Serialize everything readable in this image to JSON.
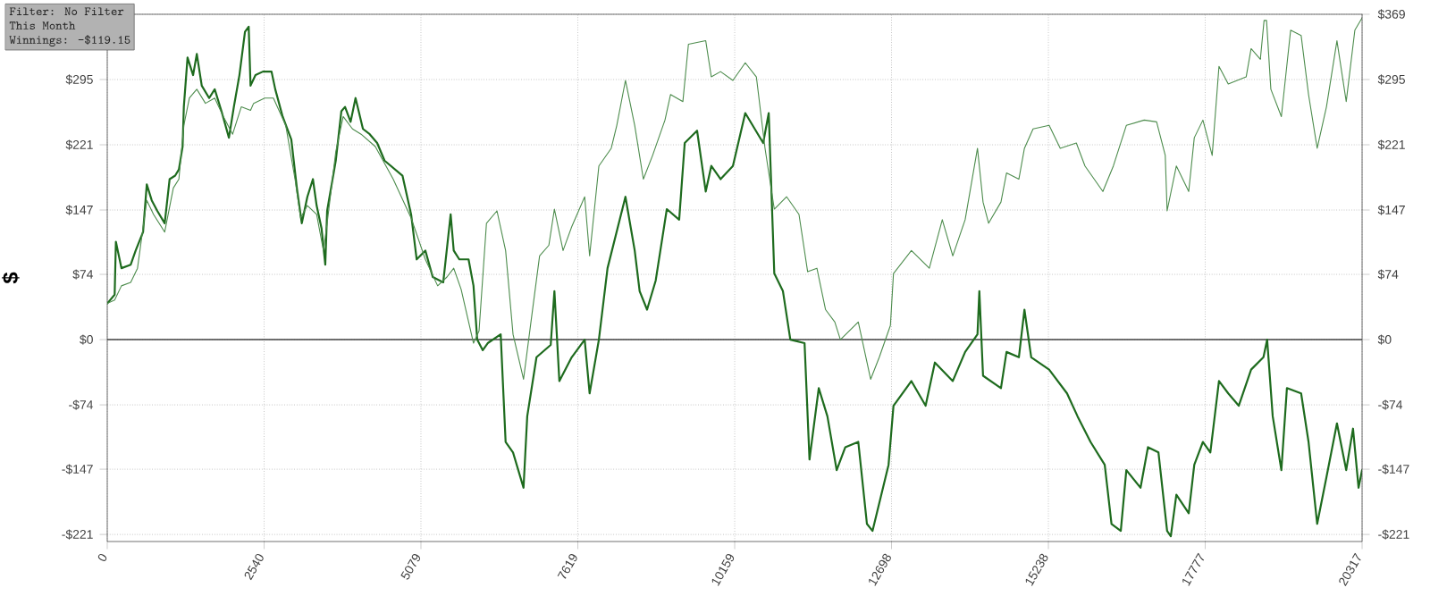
{
  "chart_data": {
    "type": "line",
    "ylabel": "$",
    "annotations": [
      "Filter: No Filter",
      "This Month",
      "Winnings: -$119.15"
    ],
    "xlim": [
      0,
      20317
    ],
    "xticks": [
      0,
      2540,
      5079,
      7619,
      10159,
      12698,
      15238,
      17777,
      20317
    ],
    "ylim": [
      -229,
      369
    ],
    "yticks": [
      {
        "value": -221,
        "label": "-$221"
      },
      {
        "value": -147,
        "label": "-$147"
      },
      {
        "value": -74,
        "label": "-$74"
      },
      {
        "value": 0,
        "label": "$0"
      },
      {
        "value": 74,
        "label": "$74"
      },
      {
        "value": 147,
        "label": "$147"
      },
      {
        "value": 221,
        "label": "$221"
      },
      {
        "value": 295,
        "label": "$295"
      },
      {
        "value": 369,
        "label": null
      }
    ],
    "y2lim": [
      -229,
      369
    ],
    "y2ticks": [
      {
        "value": -221,
        "label": "-$221"
      },
      {
        "value": -147,
        "label": "-$147"
      },
      {
        "value": -74,
        "label": "-$74"
      },
      {
        "value": 0,
        "label": "$0"
      },
      {
        "value": 74,
        "label": "$74"
      },
      {
        "value": 147,
        "label": "$147"
      },
      {
        "value": 221,
        "label": "$221"
      },
      {
        "value": 295,
        "label": "$295"
      },
      {
        "value": 369,
        "label": "$369"
      }
    ],
    "grid": true,
    "marker": "none",
    "line_style": "solid",
    "ref_lines": [
      {
        "axis": "y",
        "value": 0,
        "color": "#404040"
      }
    ],
    "series": [
      {
        "color": "#1e6b1e",
        "x": [
          0,
          120,
          140,
          230,
          380,
          460,
          580,
          640,
          720,
          810,
          930,
          1010,
          1100,
          1160,
          1220,
          1240,
          1300,
          1390,
          1450,
          1530,
          1650,
          1740,
          1850,
          1970,
          2050,
          2140,
          2230,
          2290,
          2320,
          2400,
          2520,
          2660,
          2720,
          2840,
          2980,
          3070,
          3150,
          3240,
          3330,
          3390,
          3470,
          3530,
          3560,
          3700,
          3790,
          3850,
          3940,
          4020,
          4140,
          4250,
          4370,
          4490,
          4780,
          4920,
          5010,
          5150,
          5270,
          5440,
          5560,
          5610,
          5700,
          5850,
          5930,
          5990,
          6080,
          6160,
          6370,
          6450,
          6570,
          6740,
          6800,
          6950,
          7180,
          7240,
          7320,
          7520,
          7730,
          7810,
          7960,
          8100,
          8390,
          8540,
          8620,
          8740,
          8880,
          9060,
          9260,
          9350,
          9550,
          9690,
          9780,
          9930,
          10130,
          10330,
          10620,
          10710,
          10800,
          10940,
          11060,
          11290,
          11370,
          11520,
          11660,
          11810,
          11950,
          12160,
          12300,
          12390,
          12650,
          12730,
          13020,
          13250,
          13400,
          13690,
          13890,
          14090,
          14120,
          14180,
          14470,
          14560,
          14760,
          14850,
          14960,
          15250,
          15540,
          15710,
          15920,
          16150,
          16260,
          16410,
          16500,
          16730,
          16850,
          17020,
          17160,
          17220,
          17310,
          17510,
          17600,
          17740,
          17860,
          18000,
          18150,
          18320,
          18520,
          18720,
          18780,
          18870,
          19010,
          19100,
          19330,
          19450,
          19590,
          19740,
          19910,
          20060,
          20170,
          20260,
          20317
        ],
        "values": [
          41,
          51,
          111,
          81,
          85,
          101,
          122,
          176,
          158,
          146,
          132,
          182,
          186,
          193,
          219,
          264,
          320,
          300,
          324,
          288,
          274,
          284,
          259,
          229,
          264,
          300,
          349,
          355,
          288,
          300,
          304,
          304,
          284,
          253,
          227,
          172,
          132,
          162,
          182,
          152,
          126,
          85,
          146,
          203,
          259,
          264,
          247,
          274,
          239,
          233,
          223,
          203,
          186,
          142,
          91,
          101,
          71,
          65,
          142,
          101,
          91,
          91,
          61,
          0,
          -12,
          -4,
          6,
          -116,
          -128,
          -168,
          -87,
          -20,
          -6,
          55,
          -47,
          -20,
          0,
          -61,
          0,
          81,
          162,
          101,
          55,
          34,
          67,
          148,
          136,
          223,
          237,
          168,
          197,
          182,
          197,
          257,
          223,
          257,
          75,
          55,
          0,
          -4,
          -136,
          -55,
          -87,
          -148,
          -122,
          -116,
          -209,
          -217,
          -142,
          -75,
          -47,
          -75,
          -26,
          -47,
          -14,
          6,
          55,
          -41,
          -55,
          -14,
          -20,
          34,
          -20,
          -34,
          -61,
          -87,
          -116,
          -142,
          -209,
          -217,
          -148,
          -168,
          -122,
          -128,
          -217,
          -223,
          -176,
          -197,
          -142,
          -116,
          -128,
          -47,
          -61,
          -75,
          -34,
          -20,
          0,
          -87,
          -148,
          -55,
          -61,
          -116,
          -209,
          -156,
          -95,
          -148,
          -101,
          -168,
          -148
        ]
      },
      {
        "color": "#4d8c4d",
        "x": [
          0,
          120,
          230,
          380,
          490,
          640,
          750,
          930,
          1070,
          1160,
          1240,
          1330,
          1450,
          1590,
          1740,
          1880,
          2030,
          2170,
          2320,
          2370,
          2550,
          2690,
          2780,
          2890,
          3040,
          3130,
          3240,
          3390,
          3500,
          3560,
          3700,
          3820,
          3970,
          4110,
          4340,
          4630,
          4920,
          5150,
          5350,
          5500,
          5610,
          5730,
          5930,
          6020,
          6140,
          6310,
          6450,
          6570,
          6740,
          6860,
          7000,
          7150,
          7240,
          7380,
          7520,
          7730,
          7810,
          7960,
          8160,
          8250,
          8390,
          8540,
          8680,
          8830,
          9030,
          9120,
          9320,
          9410,
          9690,
          9780,
          9930,
          10130,
          10330,
          10510,
          10650,
          10800,
          11000,
          11200,
          11340,
          11490,
          11630,
          11780,
          11870,
          12160,
          12360,
          12500,
          12680,
          12730,
          13020,
          13310,
          13520,
          13690,
          13890,
          14090,
          14180,
          14270,
          14470,
          14560,
          14760,
          14850,
          14990,
          15250,
          15430,
          15690,
          15830,
          16120,
          16290,
          16500,
          16790,
          16990,
          17130,
          17160,
          17310,
          17510,
          17600,
          17740,
          17890,
          18000,
          18150,
          18440,
          18520,
          18670,
          18730,
          18770,
          18840,
          19010,
          19160,
          19330,
          19450,
          19590,
          19740,
          19910,
          20060,
          20200,
          20317
        ],
        "values": [
          41,
          45,
          61,
          65,
          81,
          158,
          142,
          122,
          172,
          182,
          243,
          274,
          284,
          268,
          274,
          253,
          233,
          264,
          260,
          268,
          274,
          274,
          260,
          243,
          182,
          138,
          152,
          142,
          101,
          132,
          213,
          253,
          239,
          233,
          219,
          182,
          138,
          91,
          61,
          71,
          81,
          57,
          -4,
          10,
          132,
          146,
          101,
          6,
          -45,
          20,
          95,
          107,
          148,
          101,
          128,
          162,
          95,
          197,
          217,
          243,
          294,
          243,
          182,
          209,
          249,
          278,
          270,
          335,
          339,
          298,
          304,
          294,
          314,
          298,
          217,
          148,
          162,
          142,
          77,
          81,
          34,
          20,
          0,
          20,
          -45,
          -20,
          16,
          75,
          101,
          81,
          136,
          95,
          136,
          217,
          156,
          132,
          156,
          189,
          182,
          217,
          239,
          243,
          217,
          223,
          197,
          168,
          197,
          243,
          249,
          247,
          209,
          146,
          197,
          168,
          229,
          249,
          209,
          310,
          290,
          298,
          330,
          318,
          362,
          362,
          284,
          253,
          351,
          345,
          278,
          217,
          264,
          339,
          270,
          351,
          365
        ]
      }
    ]
  }
}
